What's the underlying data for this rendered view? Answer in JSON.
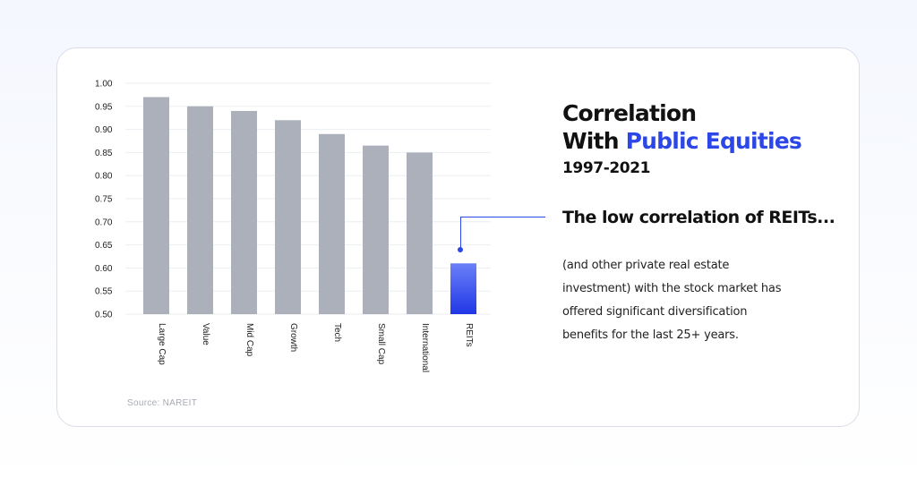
{
  "chart_data": {
    "type": "bar",
    "categories": [
      "Large Cap",
      "Value",
      "Mid Cap",
      "Growth",
      "Tech",
      "Small Cap",
      "International",
      "REITs"
    ],
    "values": [
      0.97,
      0.95,
      0.94,
      0.92,
      0.89,
      0.865,
      0.85,
      0.61
    ],
    "ylim": [
      0.5,
      1.0
    ],
    "yticks": [
      "1.00",
      "0.95",
      "0.90",
      "0.85",
      "0.80",
      "0.75",
      "0.70",
      "0.65",
      "0.60",
      "0.55",
      "0.50"
    ],
    "grid": true,
    "bar_color": "#abb0ba",
    "highlight": {
      "category": "REITs",
      "color_top": "#6b80f7",
      "color_bottom": "#2037e6"
    }
  },
  "title": {
    "line1": "Correlation",
    "line2_prefix": "With ",
    "line2_accent": "Public Equities",
    "years": "1997-2021"
  },
  "subtitle": "The low correlation of REITs...",
  "body": "(and other private real estate investment) with the stock market has offered significant diversification benefits for the last 25+ years.",
  "source": "Source: NAREIT",
  "colors": {
    "accent": "#2d46e8",
    "text": "#111111"
  }
}
